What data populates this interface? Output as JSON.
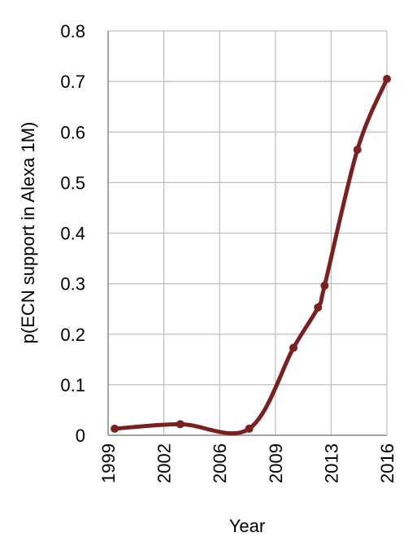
{
  "chart_data": {
    "type": "line",
    "xlabel": "Year",
    "ylabel": "p(ECN support in Alexa 1M)",
    "xlim": [
      1999,
      2016
    ],
    "ylim": [
      0,
      0.8
    ],
    "x_ticks": [
      "1999",
      "2002",
      "2006",
      "2009",
      "2013",
      "2016"
    ],
    "y_ticks": [
      "0",
      "0.1",
      "0.2",
      "0.3",
      "0.4",
      "0.5",
      "0.6",
      "0.7",
      "0.8"
    ],
    "grid": true,
    "legend": "none",
    "series": [
      {
        "color": "#7b2020",
        "points": [
          {
            "x": 1999.4,
            "y": 0.013
          },
          {
            "x": 2003.4,
            "y": 0.022
          },
          {
            "x": 2007.6,
            "y": 0.013
          },
          {
            "x": 2010.3,
            "y": 0.173
          },
          {
            "x": 2011.8,
            "y": 0.253
          },
          {
            "x": 2012.2,
            "y": 0.296
          },
          {
            "x": 2014.2,
            "y": 0.565
          },
          {
            "x": 2016.0,
            "y": 0.705
          }
        ]
      }
    ]
  }
}
